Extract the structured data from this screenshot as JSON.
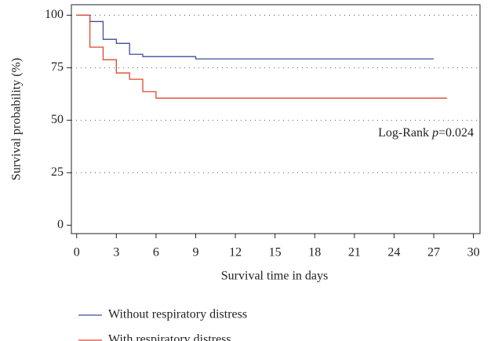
{
  "chart_data": {
    "type": "step",
    "xlabel": "Survival time in days",
    "ylabel": "Survival probability (%)",
    "annotation": {
      "text": "Log-Rank ",
      "italic": "p",
      "rest": "=0.024"
    },
    "xlim": [
      -0.4,
      30.5
    ],
    "ylim": [
      -4,
      105
    ],
    "xticks": [
      0,
      3,
      6,
      9,
      12,
      15,
      18,
      21,
      24,
      27,
      30
    ],
    "yticks": [
      0,
      25,
      50,
      75,
      100
    ],
    "grid": true,
    "series": [
      {
        "name": "Without respiratory distress",
        "color": "#3b4f9a",
        "x": [
          0,
          1,
          2,
          3,
          4,
          5,
          9,
          27
        ],
        "values": [
          100,
          97,
          88.5,
          86.6,
          81.4,
          80.3,
          79.2,
          79.2
        ]
      },
      {
        "name": "With respiratory distress",
        "color": "#e0462a",
        "x": [
          0,
          1,
          2,
          3,
          4,
          5,
          6,
          28
        ],
        "values": [
          100,
          84.8,
          78.8,
          72.5,
          69.5,
          63.6,
          60.5,
          60.5
        ]
      }
    ]
  }
}
